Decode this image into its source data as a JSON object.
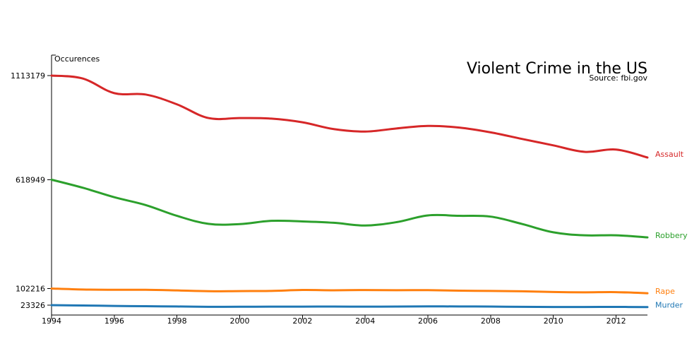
{
  "chart_data": {
    "type": "line",
    "title": "Violent Crime in the US",
    "subtitle": "Source: fbi.gov",
    "ylabel": "Occurences",
    "xlabel": "",
    "x": [
      1994,
      1995,
      1996,
      1997,
      1998,
      1999,
      2000,
      2001,
      2002,
      2003,
      2004,
      2005,
      2006,
      2007,
      2008,
      2009,
      2010,
      2011,
      2012,
      2013
    ],
    "xlim": [
      1994,
      2013
    ],
    "ylim": [
      23326,
      1113179
    ],
    "x_ticks": [
      "1994",
      "1996",
      "1998",
      "2000",
      "2002",
      "2004",
      "2006",
      "2008",
      "2010",
      "2012"
    ],
    "y_ticks": [
      "23326",
      "102216",
      "618949",
      "1113179"
    ],
    "grid": false,
    "legend": "end-of-line labels",
    "series": [
      {
        "name": "Assault",
        "color": "#d62728",
        "values": [
          1113179,
          1099207,
          1029814,
          1023201,
          976583,
          911740,
          911706,
          909023,
          891407,
          859030,
          847381,
          862220,
          874096,
          866358,
          843683,
          812514,
          781844,
          751131,
          762009,
          724149
        ]
      },
      {
        "name": "Robbery",
        "color": "#2ca02c",
        "values": [
          618949,
          580509,
          535594,
          498534,
          447186,
          409371,
          408016,
          423557,
          420806,
          414235,
          401470,
          417438,
          449246,
          447324,
          443563,
          408742,
          369089,
          354746,
          355051,
          345031
        ]
      },
      {
        "name": "Rape",
        "color": "#ff7f0e",
        "values": [
          102216,
          97470,
          96252,
          96153,
          93144,
          89411,
          90178,
          90863,
          95235,
          93883,
          95089,
          94347,
          94472,
          92160,
          90750,
          89241,
          85593,
          84175,
          85141,
          79770
        ]
      },
      {
        "name": "Murder",
        "color": "#1f77b4",
        "values": [
          23326,
          21606,
          19645,
          18208,
          16974,
          15522,
          15586,
          16037,
          16229,
          16528,
          16148,
          16740,
          17309,
          17128,
          16465,
          15399,
          14722,
          14661,
          14866,
          14196
        ]
      }
    ]
  }
}
